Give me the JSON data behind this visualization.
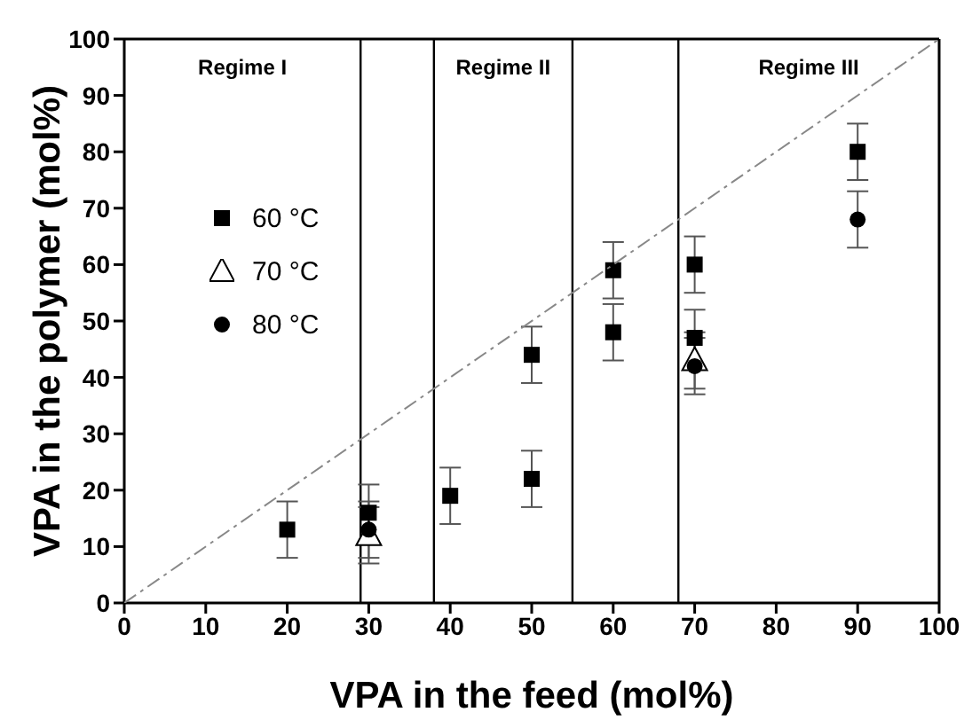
{
  "chart_data": {
    "type": "scatter",
    "xlabel": "VPA in the feed (mol%)",
    "ylabel": "VPA in the polymer (mol%)",
    "xlim": [
      0,
      100
    ],
    "ylim": [
      0,
      100
    ],
    "xticks": [
      0,
      10,
      20,
      30,
      40,
      50,
      60,
      70,
      80,
      90,
      100
    ],
    "yticks": [
      0,
      10,
      20,
      30,
      40,
      50,
      60,
      70,
      80,
      90,
      100
    ],
    "grid": false,
    "legend": "left",
    "series": [
      {
        "name": "60 °C",
        "color": "#000000",
        "marker": "square",
        "x": [
          20,
          30,
          40,
          50,
          50,
          60,
          60,
          70,
          70,
          90
        ],
        "values": [
          13,
          16,
          19,
          44,
          22,
          59,
          48,
          60,
          47,
          80
        ],
        "errors": [
          5,
          5,
          5,
          5,
          5,
          5,
          5,
          5,
          5,
          5
        ]
      },
      {
        "name": "70 °C",
        "color": "#000000",
        "marker": "triangle",
        "x": [
          30,
          70
        ],
        "values": [
          12,
          43
        ],
        "errors": [
          5,
          5
        ]
      },
      {
        "name": "80 °C",
        "color": "#000000",
        "marker": "circle",
        "x": [
          30,
          70,
          90
        ],
        "values": [
          13,
          42,
          68
        ],
        "errors": [
          5,
          5,
          5
        ]
      },
      {
        "type": "line",
        "color": "#888888",
        "line_style": "dashed",
        "marker": "none",
        "x": [
          0,
          100
        ],
        "values": [
          0,
          100
        ]
      }
    ],
    "ref_lines": [
      {
        "axis": "x",
        "value": 29,
        "color": "#000000"
      },
      {
        "axis": "x",
        "value": 38,
        "color": "#000000"
      },
      {
        "axis": "x",
        "value": 55,
        "color": "#000000"
      },
      {
        "axis": "x",
        "value": 68,
        "color": "#000000"
      }
    ],
    "annotations": [
      "Regime I",
      "Regime II",
      "Regime III"
    ]
  }
}
